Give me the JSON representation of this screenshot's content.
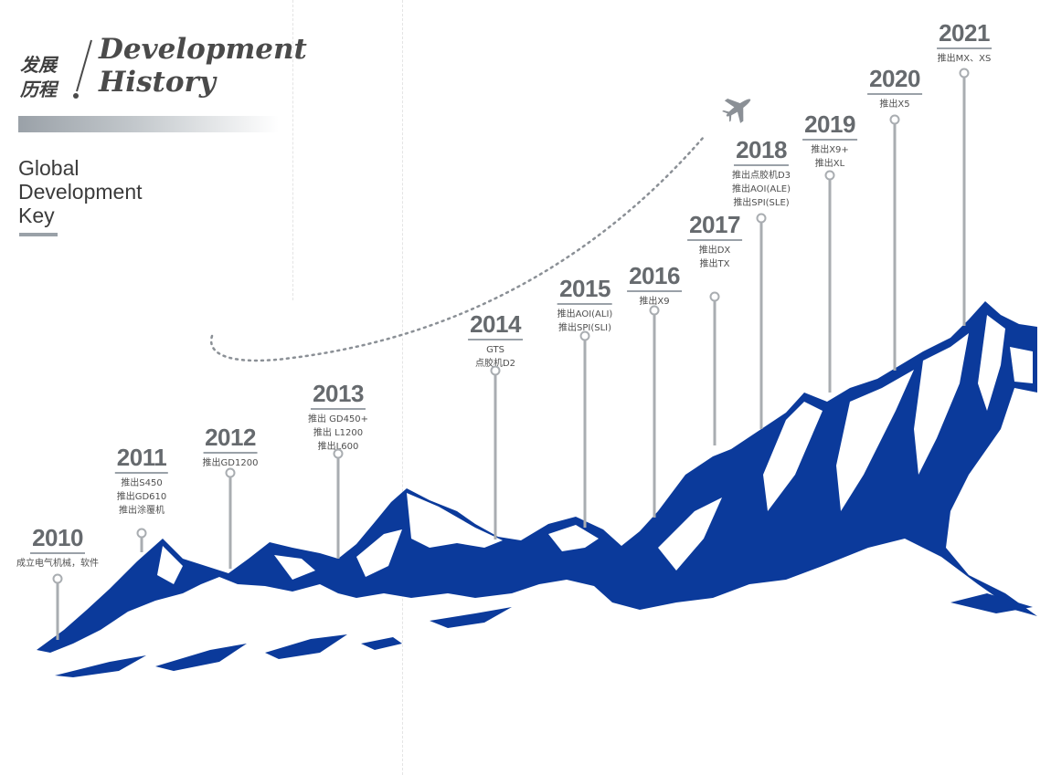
{
  "header": {
    "title_cn_line1": "发展",
    "title_cn_line2": "历程",
    "title_en_line1": "Development",
    "title_en_line2": "History",
    "subtitle_line1": "Global",
    "subtitle_line2": "Development",
    "subtitle_line3": "Key"
  },
  "milestones": [
    {
      "year": "2010",
      "events": [
        "成立电气机械，软件"
      ]
    },
    {
      "year": "2011",
      "events": [
        "推出S450",
        "推出GD610",
        "推出涂覆机"
      ]
    },
    {
      "year": "2012",
      "events": [
        "推出GD1200"
      ]
    },
    {
      "year": "2013",
      "events": [
        "推出 GD450+",
        "推出 L1200",
        "推出L600"
      ]
    },
    {
      "year": "2014",
      "events": [
        "GTS",
        "点胶机D2"
      ]
    },
    {
      "year": "2015",
      "events": [
        "推出AOI(ALI)",
        "推出SPI(SLI)"
      ]
    },
    {
      "year": "2016",
      "events": [
        "推出X9"
      ]
    },
    {
      "year": "2017",
      "events": [
        "推出DX",
        "推出TX"
      ]
    },
    {
      "year": "2018",
      "events": [
        "推出点胶机D3",
        "推出AOI(ALE)",
        "推出SPI(SLE)"
      ]
    },
    {
      "year": "2019",
      "events": [
        "推出X9+",
        "推出XL"
      ]
    },
    {
      "year": "2020",
      "events": [
        "推出X5"
      ]
    },
    {
      "year": "2021",
      "events": [
        "推出MX、XS"
      ]
    }
  ],
  "colors": {
    "mountain": "#0b3a9b",
    "accent_gray": "#9aa1a8",
    "text": "#4f4f4f"
  },
  "icons": {
    "plane": "airplane-icon"
  }
}
